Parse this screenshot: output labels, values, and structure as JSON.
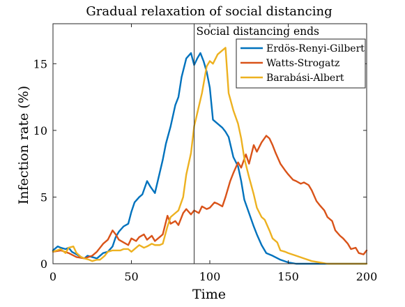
{
  "chart_data": {
    "type": "line",
    "title": "Gradual relaxation of social distancing",
    "xlabel": "Time",
    "ylabel": "Infection rate (%)",
    "xlim": [
      0,
      200
    ],
    "ylim": [
      0,
      18
    ],
    "xticks": [
      0,
      50,
      100,
      150,
      200
    ],
    "yticks": [
      0,
      5,
      10,
      15
    ],
    "grid": false,
    "legend_position": "top-right",
    "annotation": {
      "x": 90,
      "text": "Social distancing ends"
    },
    "series": [
      {
        "name": "Erdös-Renyi-Gilbert",
        "color": "#0072BD",
        "x": [
          0,
          3,
          5,
          8,
          10,
          12,
          15,
          18,
          20,
          22,
          25,
          28,
          30,
          32,
          35,
          38,
          40,
          42,
          45,
          48,
          50,
          52,
          55,
          57,
          60,
          62,
          65,
          68,
          70,
          72,
          75,
          78,
          80,
          82,
          85,
          88,
          90,
          92,
          94,
          96,
          98,
          100,
          102,
          105,
          108,
          110,
          112,
          115,
          118,
          120,
          122,
          125,
          128,
          130,
          133,
          136,
          140,
          145,
          150,
          155,
          160,
          165,
          170,
          180,
          190,
          200
        ],
        "y": [
          1.0,
          1.3,
          1.2,
          1.1,
          1.2,
          0.9,
          0.7,
          0.5,
          0.4,
          0.6,
          0.5,
          0.4,
          0.6,
          0.8,
          0.9,
          1.3,
          2.0,
          2.4,
          2.8,
          3.0,
          3.9,
          4.6,
          5.0,
          5.2,
          6.2,
          5.8,
          5.3,
          6.8,
          7.8,
          9.0,
          10.3,
          11.9,
          12.5,
          14.0,
          15.4,
          15.8,
          14.9,
          15.4,
          15.8,
          15.2,
          14.4,
          13.2,
          10.8,
          10.5,
          10.2,
          9.9,
          9.5,
          8.0,
          7.3,
          6.2,
          4.8,
          3.8,
          2.8,
          2.2,
          1.4,
          0.8,
          0.6,
          0.3,
          0.1,
          0.0,
          0.0,
          0.0,
          0.0,
          0.0,
          0.0,
          0.0
        ]
      },
      {
        "name": "Watts-Strogatz",
        "color": "#D95319",
        "x": [
          0,
          5,
          10,
          15,
          20,
          25,
          28,
          30,
          32,
          35,
          38,
          40,
          42,
          45,
          48,
          50,
          53,
          55,
          58,
          60,
          63,
          65,
          68,
          70,
          73,
          75,
          78,
          80,
          83,
          85,
          88,
          90,
          93,
          95,
          98,
          100,
          103,
          105,
          108,
          110,
          113,
          115,
          118,
          120,
          123,
          125,
          128,
          130,
          133,
          136,
          138,
          140,
          142,
          145,
          148,
          150,
          153,
          155,
          158,
          160,
          163,
          165,
          168,
          170,
          173,
          175,
          178,
          180,
          183,
          185,
          188,
          190,
          193,
          195,
          198,
          200
        ],
        "y": [
          0.9,
          1.0,
          0.8,
          0.5,
          0.4,
          0.6,
          0.9,
          1.2,
          1.5,
          1.8,
          2.5,
          2.2,
          1.8,
          1.6,
          1.4,
          1.9,
          1.7,
          2.0,
          2.2,
          1.8,
          2.1,
          1.7,
          2.0,
          2.2,
          3.6,
          3.0,
          3.2,
          2.9,
          3.8,
          4.1,
          3.7,
          4.0,
          3.8,
          4.3,
          4.1,
          4.2,
          4.6,
          4.5,
          4.3,
          5.0,
          6.2,
          6.8,
          7.6,
          7.2,
          8.2,
          7.5,
          8.9,
          8.4,
          9.1,
          9.6,
          9.4,
          8.9,
          8.3,
          7.5,
          7.0,
          6.7,
          6.3,
          6.2,
          6.0,
          6.1,
          5.9,
          5.5,
          4.7,
          4.4,
          4.0,
          3.5,
          3.2,
          2.5,
          2.1,
          1.9,
          1.5,
          1.1,
          1.2,
          0.8,
          0.7,
          1.0
        ]
      },
      {
        "name": "Barabási-Albert",
        "color": "#EDB120",
        "x": [
          0,
          5,
          8,
          10,
          13,
          15,
          18,
          20,
          23,
          25,
          28,
          30,
          33,
          35,
          38,
          40,
          43,
          45,
          48,
          50,
          53,
          55,
          58,
          60,
          63,
          65,
          68,
          70,
          73,
          75,
          78,
          80,
          83,
          85,
          88,
          90,
          92,
          95,
          98,
          100,
          102,
          105,
          108,
          110,
          112,
          115,
          118,
          120,
          122,
          125,
          128,
          130,
          133,
          135,
          138,
          140,
          143,
          145,
          148,
          150,
          155,
          160,
          165,
          170,
          175,
          180,
          185,
          190,
          200
        ],
        "y": [
          0.9,
          1.1,
          0.8,
          1.2,
          1.3,
          0.8,
          0.5,
          0.4,
          0.3,
          0.2,
          0.3,
          0.3,
          0.6,
          0.9,
          1.0,
          1.0,
          1.0,
          1.1,
          1.1,
          0.9,
          1.2,
          1.4,
          1.2,
          1.3,
          1.5,
          1.4,
          1.4,
          1.5,
          2.8,
          3.5,
          3.8,
          4.0,
          5.0,
          6.7,
          8.3,
          10.3,
          11.3,
          12.8,
          14.8,
          15.2,
          15.0,
          15.7,
          16.0,
          16.2,
          12.8,
          11.5,
          10.5,
          9.4,
          7.9,
          6.5,
          5.2,
          4.2,
          3.5,
          3.3,
          2.5,
          1.9,
          1.6,
          1.0,
          0.9,
          0.8,
          0.6,
          0.4,
          0.2,
          0.1,
          0.0,
          0.0,
          0.0,
          0.0,
          0.0
        ]
      }
    ]
  }
}
